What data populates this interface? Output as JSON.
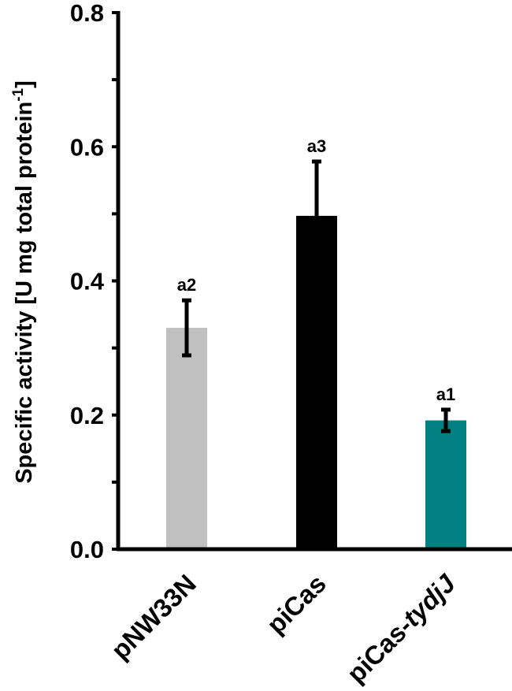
{
  "chart_data": {
    "type": "bar",
    "title": "",
    "xlabel": "",
    "ylabel": "Specific activity [U mg total protein",
    "ylabel_sup": "-1",
    "ylabel_close": "]",
    "ylim": [
      0,
      0.8
    ],
    "yticks": [
      "0.0",
      "0.2",
      "0.4",
      "0.6",
      "0.8"
    ],
    "grid": false,
    "categories": [
      {
        "text": "pNW33N",
        "italic_suffix": ""
      },
      {
        "text": "piCas",
        "italic_suffix": ""
      },
      {
        "text": "piCas-",
        "italic_suffix": "tydjJ"
      }
    ],
    "values": [
      0.33,
      0.497,
      0.192
    ],
    "errors": [
      0.041,
      0.081,
      0.016
    ],
    "labels": [
      "a2",
      "a3",
      "a1"
    ],
    "colors": [
      "#c0c0c0",
      "#000000",
      "#008080"
    ]
  }
}
